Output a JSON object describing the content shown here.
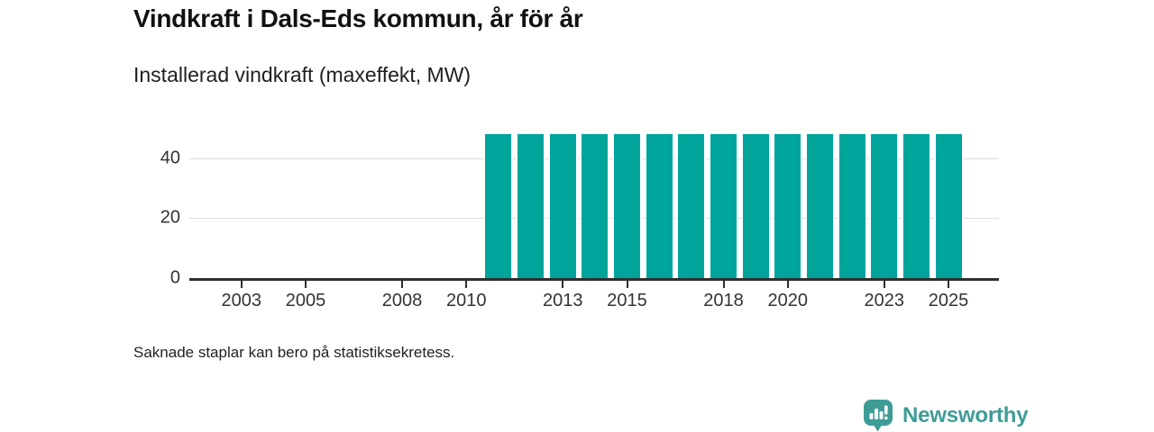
{
  "header": {
    "title": "Vindkraft i Dals-Eds kommun, år för år",
    "subtitle": "Installerad vindkraft (maxeffekt, MW)"
  },
  "chart_data": {
    "type": "bar",
    "title": "Vindkraft i Dals-Eds kommun, år för år",
    "subtitle": "Installerad vindkraft (maxeffekt, MW)",
    "xlabel": "",
    "ylabel": "Installerad vindkraft (maxeffekt, MW)",
    "categories": [
      2002,
      2003,
      2004,
      2005,
      2006,
      2007,
      2008,
      2009,
      2010,
      2011,
      2012,
      2013,
      2014,
      2015,
      2016,
      2017,
      2018,
      2019,
      2020,
      2021,
      2022,
      2023,
      2024,
      2025
    ],
    "values": [
      null,
      null,
      null,
      null,
      null,
      null,
      null,
      null,
      null,
      48,
      48,
      48,
      48,
      48,
      48,
      48,
      48,
      48,
      48,
      48,
      48,
      48,
      48,
      48
    ],
    "x_tick_labels": [
      "2003",
      "2005",
      "2008",
      "2010",
      "2013",
      "2015",
      "2018",
      "2020",
      "2023",
      "2025"
    ],
    "y_ticks": [
      0,
      20,
      40
    ],
    "ylim": [
      0,
      50
    ],
    "grid": "horizontal",
    "legend": "none",
    "bar_color": "#00a49b",
    "axis_color": "#2f2f2f",
    "gridline_color": "#dcdcdc"
  },
  "footnote": "Saknade staplar kan bero på statistiksekretess.",
  "logo": {
    "text": "Newsworthy",
    "icon": "bar-chart-speech-bubble-icon",
    "color": "#3e9c97"
  }
}
